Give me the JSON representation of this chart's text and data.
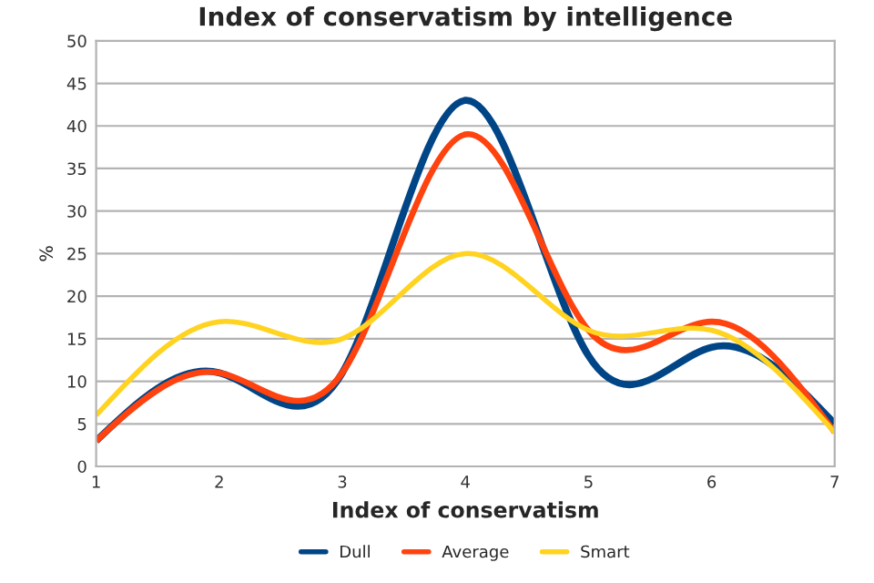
{
  "chart_data": {
    "type": "line",
    "title": "Index of conservatism by intelligence",
    "xlabel": "Index of conservatism",
    "ylabel": "%",
    "x": [
      1,
      2,
      3,
      4,
      5,
      6,
      7
    ],
    "series": [
      {
        "name": "Dull",
        "color": "#004586",
        "values": [
          3,
          11,
          11,
          43,
          13,
          14,
          5
        ]
      },
      {
        "name": "Average",
        "color": "#ff420e",
        "values": [
          3,
          11,
          11,
          39,
          16,
          17,
          4
        ]
      },
      {
        "name": "Smart",
        "color": "#ffd320",
        "values": [
          6,
          17,
          15,
          25,
          16,
          16,
          4
        ]
      }
    ],
    "xlim": [
      1,
      7
    ],
    "xticks": [
      1,
      2,
      3,
      4,
      5,
      6,
      7
    ],
    "ylim": [
      0,
      50
    ],
    "yticks": [
      0,
      5,
      10,
      15,
      20,
      25,
      30,
      35,
      40,
      45,
      50
    ],
    "grid": "y",
    "legend": "bottom",
    "marker": "none",
    "line_style": "solid"
  }
}
